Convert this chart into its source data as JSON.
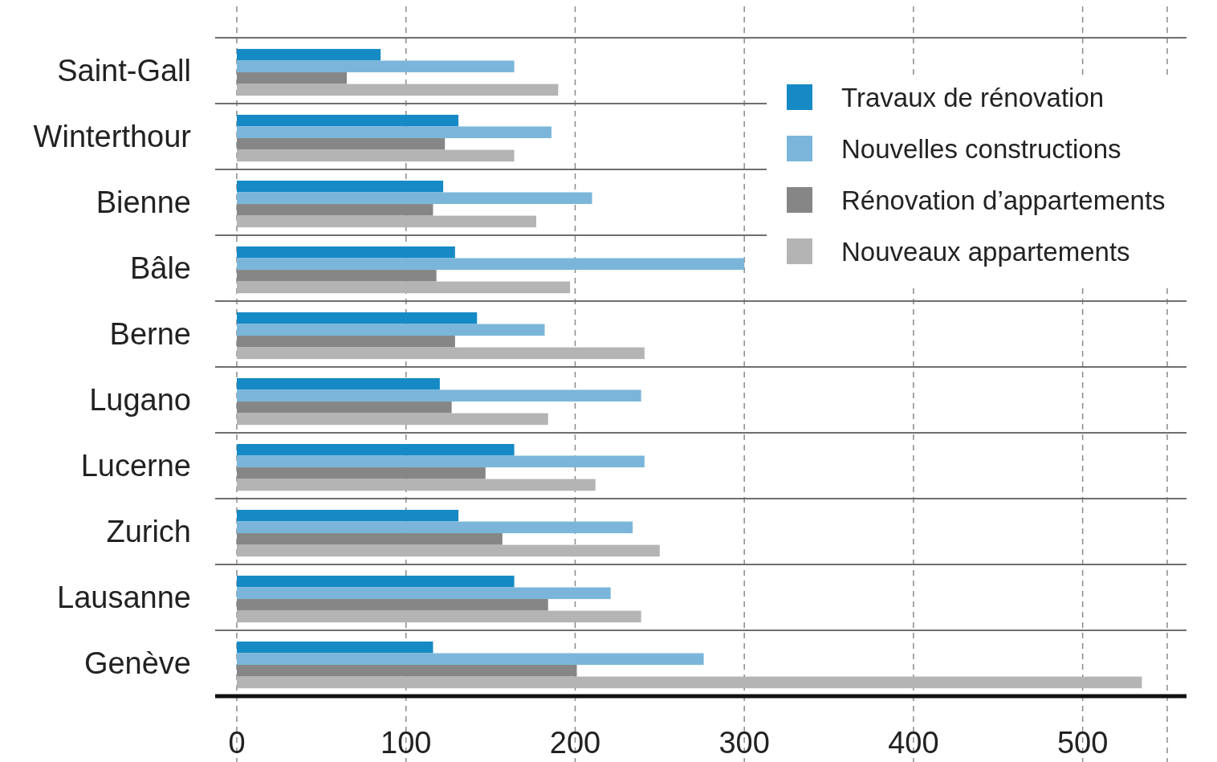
{
  "chart_data": {
    "type": "bar",
    "orientation": "horizontal",
    "categories": [
      "Saint-Gall",
      "Winterthour",
      "Bienne",
      "Bâle",
      "Berne",
      "Lugano",
      "Lucerne",
      "Zurich",
      "Lausanne",
      "Genève"
    ],
    "series": [
      {
        "name": "Travaux de rénovation",
        "color": "#168ac4",
        "values": [
          85,
          131,
          122,
          129,
          142,
          120,
          164,
          131,
          164,
          116
        ]
      },
      {
        "name": "Nouvelles constructions",
        "color": "#7bb6da",
        "values": [
          164,
          186,
          210,
          300,
          182,
          239,
          241,
          234,
          221,
          276
        ]
      },
      {
        "name": "Rénovation d’appartements",
        "color": "#868686",
        "values": [
          65,
          123,
          116,
          118,
          129,
          127,
          147,
          157,
          184,
          201
        ]
      },
      {
        "name": "Nouveaux appartements",
        "color": "#b4b4b4",
        "values": [
          190,
          164,
          177,
          197,
          241,
          184,
          212,
          250,
          239,
          535
        ]
      }
    ],
    "xlim": [
      0,
      550
    ],
    "xticks": [
      0,
      100,
      200,
      300,
      400,
      500,
      {
        "value": 550,
        "label": null
      }
    ],
    "grid": "x",
    "legend": "top right"
  }
}
